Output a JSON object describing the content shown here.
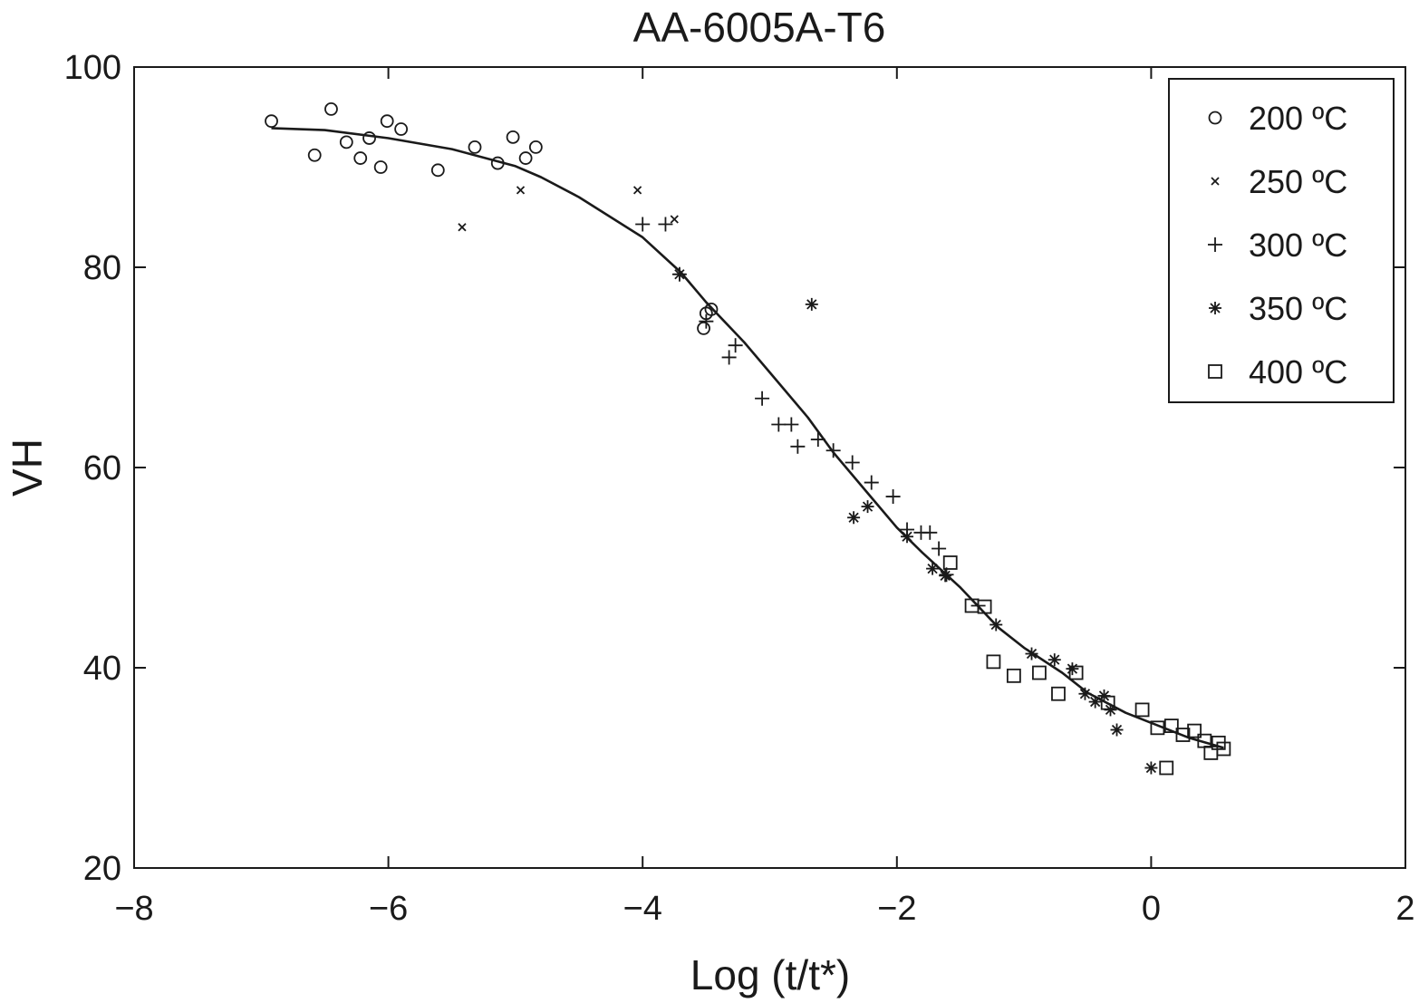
{
  "chart_data": {
    "type": "scatter",
    "title": "AA-6005A-T6",
    "xlabel": "Log (t/t*)",
    "ylabel": "VH",
    "xlim": [
      -8,
      2
    ],
    "ylim": [
      20,
      100
    ],
    "x_ticks": [
      -8,
      -6,
      -4,
      -2,
      0,
      2
    ],
    "x_tick_labels": [
      "−8",
      "−6",
      "−4",
      "−2",
      "0",
      "2"
    ],
    "y_ticks": [
      20,
      40,
      60,
      80,
      100
    ],
    "y_tick_labels": [
      "20",
      "40",
      "60",
      "80",
      "100"
    ],
    "grid": false,
    "legend_position": "top-right",
    "color": "#1a1a1a",
    "series": [
      {
        "name": "200 ºC",
        "marker": "circle",
        "points": [
          [
            -6.92,
            94.6
          ],
          [
            -6.58,
            91.2
          ],
          [
            -6.45,
            95.8
          ],
          [
            -6.33,
            92.5
          ],
          [
            -6.22,
            90.9
          ],
          [
            -6.15,
            92.9
          ],
          [
            -6.06,
            90.0
          ],
          [
            -6.01,
            94.6
          ],
          [
            -5.9,
            93.8
          ],
          [
            -5.61,
            89.7
          ],
          [
            -5.32,
            92.0
          ],
          [
            -5.14,
            90.4
          ],
          [
            -5.02,
            93.0
          ],
          [
            -4.92,
            90.9
          ],
          [
            -4.84,
            92.0
          ],
          [
            -3.52,
            73.9
          ],
          [
            -3.5,
            75.4
          ],
          [
            -3.46,
            75.8
          ]
        ]
      },
      {
        "name": "250 ºC",
        "marker": "x",
        "points": [
          [
            -5.42,
            84.0
          ],
          [
            -4.96,
            87.7
          ],
          [
            -4.04,
            87.7
          ],
          [
            -3.75,
            84.8
          ]
        ]
      },
      {
        "name": "300 ºC",
        "marker": "plus",
        "points": [
          [
            -4.0,
            84.3
          ],
          [
            -3.82,
            84.3
          ],
          [
            -3.71,
            79.3
          ],
          [
            -3.5,
            74.6
          ],
          [
            -3.32,
            71.0
          ],
          [
            -3.27,
            72.2
          ],
          [
            -3.06,
            66.9
          ],
          [
            -2.93,
            64.3
          ],
          [
            -2.83,
            64.3
          ],
          [
            -2.78,
            62.1
          ],
          [
            -2.62,
            62.8
          ],
          [
            -2.5,
            61.7
          ],
          [
            -2.35,
            60.5
          ],
          [
            -2.2,
            58.5
          ],
          [
            -2.03,
            57.1
          ],
          [
            -1.92,
            53.8
          ],
          [
            -1.81,
            53.5
          ],
          [
            -1.74,
            53.5
          ],
          [
            -1.67,
            51.9
          ],
          [
            -1.61,
            49.3
          ],
          [
            -1.36,
            46.2
          ]
        ]
      },
      {
        "name": "350 ºC",
        "marker": "asterisk",
        "points": [
          [
            -3.71,
            79.3
          ],
          [
            -2.67,
            76.3
          ],
          [
            -2.34,
            55.0
          ],
          [
            -2.23,
            56.1
          ],
          [
            -1.92,
            53.1
          ],
          [
            -1.72,
            49.9
          ],
          [
            -1.62,
            49.2
          ],
          [
            -1.22,
            44.3
          ],
          [
            -0.94,
            41.4
          ],
          [
            -0.76,
            40.8
          ],
          [
            -0.62,
            39.9
          ],
          [
            -0.52,
            37.4
          ],
          [
            -0.44,
            36.6
          ],
          [
            -0.37,
            37.2
          ],
          [
            -0.32,
            35.8
          ],
          [
            -0.27,
            33.8
          ],
          [
            0.0,
            30.0
          ]
        ]
      },
      {
        "name": "400 ºC",
        "marker": "square",
        "points": [
          [
            -1.58,
            50.5
          ],
          [
            -1.41,
            46.2
          ],
          [
            -1.31,
            46.1
          ],
          [
            -1.24,
            40.6
          ],
          [
            -1.08,
            39.2
          ],
          [
            -0.88,
            39.5
          ],
          [
            -0.73,
            37.4
          ],
          [
            -0.59,
            39.5
          ],
          [
            -0.34,
            36.5
          ],
          [
            -0.07,
            35.8
          ],
          [
            0.05,
            34.0
          ],
          [
            0.12,
            30.0
          ],
          [
            0.16,
            34.2
          ],
          [
            0.25,
            33.3
          ],
          [
            0.34,
            33.7
          ],
          [
            0.42,
            32.7
          ],
          [
            0.47,
            31.5
          ],
          [
            0.53,
            32.5
          ],
          [
            0.57,
            31.9
          ]
        ]
      }
    ],
    "curve": {
      "x": [
        -6.92,
        -6.5,
        -6.0,
        -5.5,
        -5.0,
        -4.8,
        -4.5,
        -4.0,
        -3.7,
        -3.5,
        -3.2,
        -3.0,
        -2.7,
        -2.5,
        -2.2,
        -2.0,
        -1.8,
        -1.5,
        -1.2,
        -1.0,
        -0.7,
        -0.5,
        -0.2,
        0.0,
        0.3,
        0.57
      ],
      "y": [
        93.9,
        93.7,
        92.9,
        91.8,
        90.1,
        89.0,
        87.0,
        83.0,
        79.5,
        76.5,
        72.5,
        69.5,
        65.0,
        61.5,
        57.0,
        54.0,
        51.5,
        48.0,
        44.0,
        42.0,
        39.5,
        37.5,
        35.5,
        34.5,
        33.0,
        32.0
      ]
    }
  }
}
